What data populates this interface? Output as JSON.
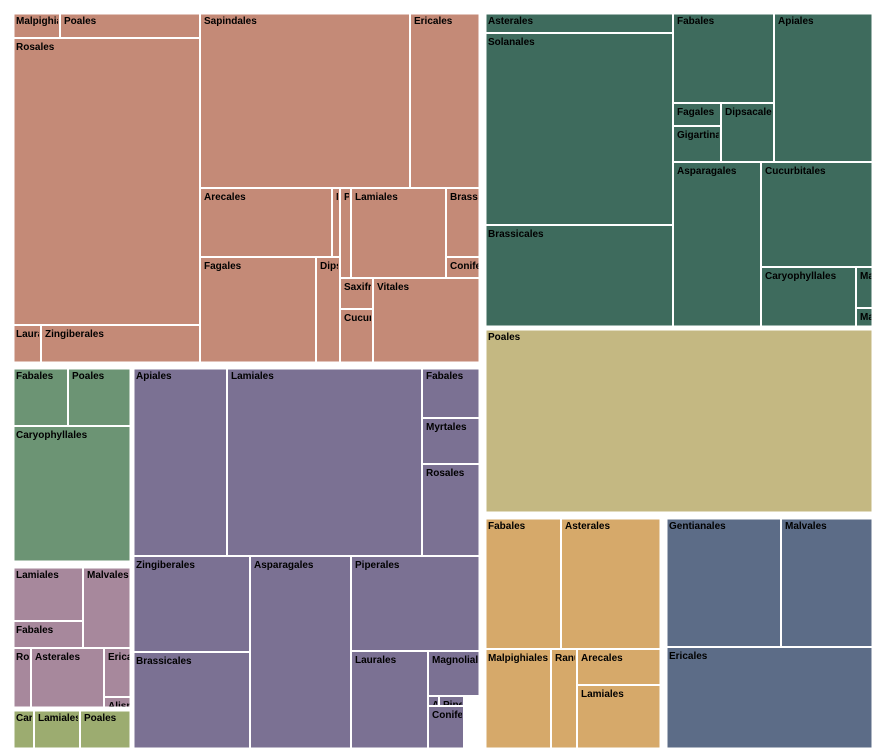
{
  "chart_data": {
    "type": "treemap",
    "title": "",
    "groups": [
      {
        "color": "#c48a77",
        "children": [
          {
            "label": "Malpighiales",
            "value": 7
          },
          {
            "label": "Poales",
            "value": 18
          },
          {
            "label": "Rosales",
            "value": 270
          },
          {
            "label": "Laurales",
            "value": 13
          },
          {
            "label": "Zingiberales",
            "value": 62
          },
          {
            "label": "Sapindales",
            "value": 289
          },
          {
            "label": "Ericales",
            "value": 95
          },
          {
            "label": "Arecales",
            "value": 88
          },
          {
            "label": "Myrtales",
            "value": 3
          },
          {
            "label": "Piperales",
            "value": 4
          },
          {
            "label": "Lamiales",
            "value": 59
          },
          {
            "label": "Brassicales",
            "value": 20
          },
          {
            "label": "Coniferales",
            "value": 7
          },
          {
            "label": "Fagales",
            "value": 83
          },
          {
            "label": "Dipsacales",
            "value": 14
          },
          {
            "label": "Saxifragales",
            "value": 6
          },
          {
            "label": "Cucurbitales",
            "value": 7
          },
          {
            "label": "Vitales",
            "value": 51
          }
        ]
      },
      {
        "color": "#3e6b5d",
        "children": [
          {
            "label": "Asterales",
            "value": 24
          },
          {
            "label": "Solanales",
            "value": 162
          },
          {
            "label": "Brassicales",
            "value": 131
          },
          {
            "label": "Fabales",
            "value": 58
          },
          {
            "label": "Apiales",
            "value": 83
          },
          {
            "label": "Fagales",
            "value": 6
          },
          {
            "label": "Dipsacales",
            "value": 10
          },
          {
            "label": "Gigartinales",
            "value": 6
          },
          {
            "label": "Asparagales",
            "value": 50
          },
          {
            "label": "Cucurbitales",
            "value": 61
          },
          {
            "label": "Caryophyllales",
            "value": 48
          },
          {
            "label": "Malvales",
            "value": 4
          },
          {
            "label": "Magnoliales",
            "value": 1
          }
        ]
      },
      {
        "color": "#c4b882",
        "children": [
          {
            "label": "Poales",
            "value": 370
          }
        ]
      },
      {
        "color": "#6c9474",
        "children": [
          {
            "label": "Fabales",
            "value": 13
          },
          {
            "label": "Poales",
            "value": 16
          },
          {
            "label": "Caryophyllales",
            "value": 67
          }
        ]
      },
      {
        "color": "#7b7193",
        "children": [
          {
            "label": "Apiales",
            "value": 97
          },
          {
            "label": "Lamiales",
            "value": 205
          },
          {
            "label": "Fabales",
            "value": 22
          },
          {
            "label": "Myrtales",
            "value": 24
          },
          {
            "label": "Rosales",
            "value": 53
          },
          {
            "label": "Zingiberales",
            "value": 66
          },
          {
            "label": "Brassicales",
            "value": 63
          },
          {
            "label": "Asparagales",
            "value": 147
          },
          {
            "label": "Piperales",
            "value": 84
          },
          {
            "label": "Laurales",
            "value": 47
          },
          {
            "label": "Magnoliales",
            "value": 22
          },
          {
            "label": "Austrobaileyales",
            "value": 4
          },
          {
            "label": "Piperales",
            "value": 4
          },
          {
            "label": "Coniferales",
            "value": 12
          }
        ]
      },
      {
        "color": "#a7889c",
        "children": [
          {
            "label": "Lamiales",
            "value": 28
          },
          {
            "label": "Malvales",
            "value": 32
          },
          {
            "label": "Fabales",
            "value": 12
          },
          {
            "label": "Rosales",
            "value": 5
          },
          {
            "label": "Asterales",
            "value": 22
          },
          {
            "label": "Ericales",
            "value": 9
          },
          {
            "label": "Alismatales",
            "value": 2
          }
        ]
      },
      {
        "color": "#9cac70",
        "children": [
          {
            "label": "Caryophyllales",
            "value": 1
          },
          {
            "label": "Lamiales",
            "value": 2
          },
          {
            "label": "Poales",
            "value": 2
          }
        ]
      },
      {
        "color": "#d6a96a",
        "children": [
          {
            "label": "Fabales",
            "value": 60
          },
          {
            "label": "Asterales",
            "value": 79
          },
          {
            "label": "Malpighiales",
            "value": 32
          },
          {
            "label": "Ranunculales",
            "value": 13
          },
          {
            "label": "Arecales",
            "value": 22
          },
          {
            "label": "Lamiales",
            "value": 34
          }
        ]
      },
      {
        "color": "#5c6c87",
        "children": [
          {
            "label": "Gentianales",
            "value": 89
          },
          {
            "label": "Malvales",
            "value": 72
          },
          {
            "label": "Ericales",
            "value": 123
          }
        ]
      }
    ]
  }
}
